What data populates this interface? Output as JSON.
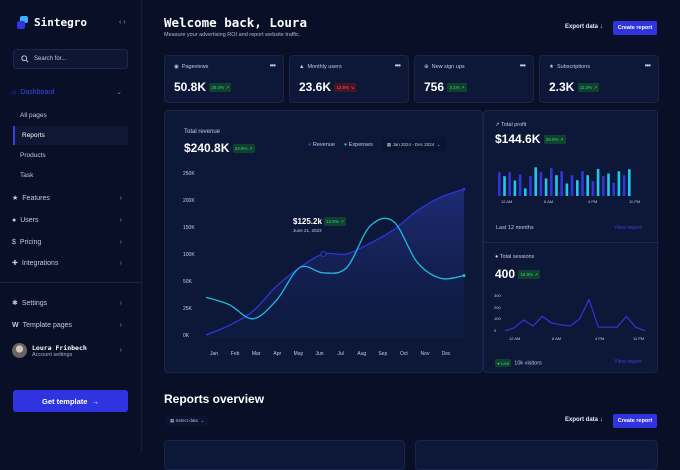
{
  "sidebar": {
    "brand": "Sintegro",
    "search_placeholder": "Search for...",
    "dashboard": "Dashboard",
    "subitems": [
      "All pages",
      "Reports",
      "Products",
      "Task"
    ],
    "items": [
      "Features",
      "Users",
      "Pricing",
      "Integrations"
    ],
    "bottom_items": [
      "Settings",
      "Template pages"
    ],
    "user": {
      "name": "Loura Frinbech",
      "subtitle": "Account settings"
    },
    "cta": "Get template"
  },
  "header": {
    "title": "Welcome back, Loura",
    "subtitle": "Measure your advertising ROI and report website traffic.",
    "export": "Export data",
    "create": "Create report"
  },
  "stats": [
    {
      "label": "Pageviews",
      "icon": "eye-icon",
      "value": "50.8K",
      "change": "28.4% ↗",
      "trend": "up"
    },
    {
      "label": "Monthly users",
      "icon": "user-icon",
      "value": "23.6K",
      "change": "12.6% ↘",
      "trend": "down"
    },
    {
      "label": "New sign ups",
      "icon": "plus-circle-icon",
      "value": "756",
      "change": "3.1% ↗",
      "trend": "up"
    },
    {
      "label": "Subscriptions",
      "icon": "star-icon",
      "value": "2.3K",
      "change": "11.3% ↗",
      "trend": "up"
    }
  ],
  "revenue": {
    "title": "Total revenue",
    "value": "$240.8K",
    "change": "24.6% ↗",
    "legend": [
      "Revenue",
      "Expenses"
    ],
    "date_range": "Jan 2024 - Dec 2024",
    "tooltip": {
      "value": "$125.2k",
      "change": "12.6% ↗",
      "date": "June 21, 2023"
    }
  },
  "profit": {
    "title": "Total profit",
    "value": "$144.6K",
    "change": "28.5% ↗",
    "period": "Last 12 months",
    "link": "View report",
    "x_labels": [
      "12 AM",
      "8 AM",
      "4 PM",
      "11 PM"
    ]
  },
  "sessions": {
    "title": "Total sessions",
    "value": "400",
    "change": "16.8% ↗",
    "live": "Live",
    "visitors": "10k visitors",
    "link": "View report",
    "y_labels": [
      "300",
      "200",
      "100",
      "0"
    ],
    "x_labels": [
      "12 AM",
      "8 AM",
      "4 PM",
      "11 PM"
    ]
  },
  "reports": {
    "title": "Reports overview",
    "select_date": "Select date",
    "export": "Export data",
    "create": "Create report"
  },
  "colors": {
    "accent": "#2f33e0",
    "revenue": "#3035d8",
    "expenses": "#22b8e0",
    "up": "#2fd38a",
    "down": "#ff5470"
  },
  "chart_data": [
    {
      "type": "area",
      "title": "Total revenue",
      "categories": [
        "Jan",
        "Feb",
        "Mar",
        "Apr",
        "May",
        "Jun",
        "Jul",
        "Aug",
        "Sep",
        "Oct",
        "Nov",
        "Dec"
      ],
      "y_ticks": [
        "0K",
        "25K",
        "50K",
        "100K",
        "150K",
        "200K",
        "250K"
      ],
      "series": [
        {
          "name": "Revenue",
          "values": [
            0,
            9,
            22,
            45,
            75,
            100,
            100,
            120,
            145,
            180,
            205,
            220
          ]
        },
        {
          "name": "Expenses",
          "values": [
            35,
            28,
            15,
            32,
            75,
            65,
            75,
            152,
            160,
            85,
            55,
            60
          ]
        }
      ]
    },
    {
      "type": "bar",
      "title": "Total profit",
      "values": [
        72,
        60,
        72,
        47,
        65,
        23,
        60,
        87,
        72,
        53,
        85,
        63,
        75,
        38,
        63,
        48,
        75,
        63,
        45,
        82,
        60,
        68,
        40,
        75,
        63,
        81
      ]
    },
    {
      "type": "line",
      "title": "Total sessions",
      "ylim": [
        0,
        300
      ],
      "values": [
        10,
        35,
        100,
        50,
        130,
        75,
        60,
        50,
        110,
        270,
        40,
        40,
        40,
        130,
        40,
        10
      ]
    }
  ]
}
